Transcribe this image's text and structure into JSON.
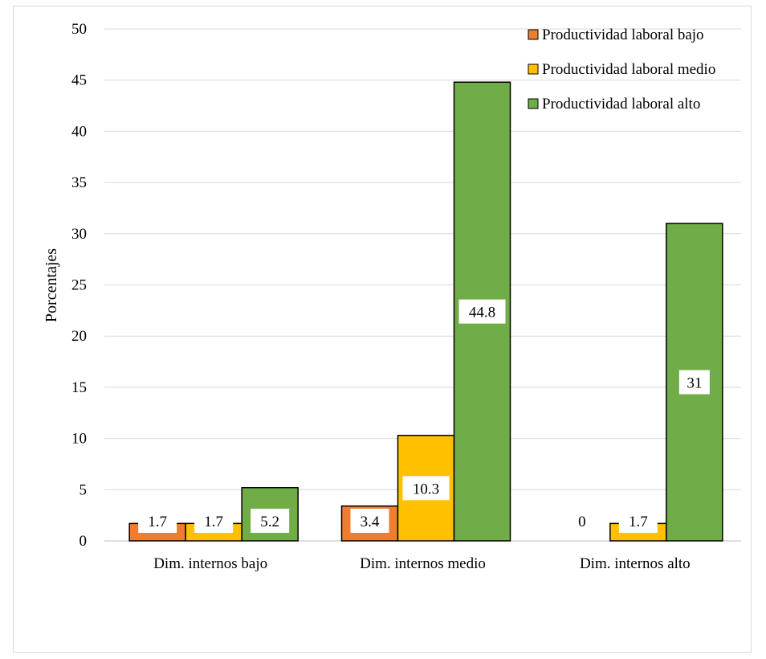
{
  "chart_data": {
    "type": "bar",
    "title": "",
    "xlabel": "",
    "ylabel": "Porcentajes",
    "ylim": [
      0,
      50
    ],
    "yticks": [
      0,
      5,
      10,
      15,
      20,
      25,
      30,
      35,
      40,
      45,
      50
    ],
    "grid": true,
    "legend_position": "top-right",
    "categories": [
      "Dim. internos bajo",
      "Dim. internos medio",
      "Dim. internos alto"
    ],
    "series": [
      {
        "name": "Productividad laboral bajo",
        "color": "#ED7D31",
        "values": [
          1.7,
          3.4,
          0
        ]
      },
      {
        "name": "Productividad laboral medio",
        "color": "#FFC000",
        "values": [
          1.7,
          10.3,
          1.7
        ]
      },
      {
        "name": "Productividad laboral alto",
        "color": "#70AD47",
        "values": [
          5.2,
          44.8,
          31
        ]
      }
    ]
  }
}
